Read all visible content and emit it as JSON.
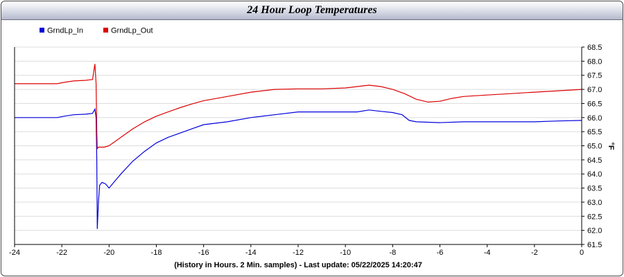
{
  "chart_data": {
    "type": "line",
    "title": "24 Hour Loop Temperatures",
    "xlabel": "(History in Hours. 2 Min. samples) - Last update: 05/22/2025 14:20:47",
    "ylabel": "°F",
    "xlim": [
      -24,
      0
    ],
    "ylim": [
      61.5,
      68.5
    ],
    "x_ticks": [
      -24,
      -22,
      -20,
      -18,
      -16,
      -14,
      -12,
      -10,
      -8,
      -6,
      -4,
      -2,
      0
    ],
    "y_ticks": [
      61.5,
      62.0,
      62.5,
      63.0,
      63.5,
      64.0,
      64.5,
      65.0,
      65.5,
      66.0,
      66.5,
      67.0,
      67.5,
      68.0,
      68.5
    ],
    "grid": "horizontal",
    "legend_position": "top-left",
    "series": [
      {
        "name": "GrndLp_In",
        "color": "#0000dd",
        "points": [
          [
            -24,
            66.0
          ],
          [
            -23,
            66.0
          ],
          [
            -22.2,
            66.0
          ],
          [
            -21.9,
            66.05
          ],
          [
            -21.5,
            66.1
          ],
          [
            -21.0,
            66.12
          ],
          [
            -20.7,
            66.15
          ],
          [
            -20.6,
            66.3
          ],
          [
            -20.55,
            66.0
          ],
          [
            -20.52,
            64.5
          ],
          [
            -20.5,
            62.05
          ],
          [
            -20.45,
            63.0
          ],
          [
            -20.4,
            63.6
          ],
          [
            -20.3,
            63.7
          ],
          [
            -20.15,
            63.65
          ],
          [
            -20.0,
            63.5
          ],
          [
            -19.8,
            63.7
          ],
          [
            -19.5,
            64.0
          ],
          [
            -19.0,
            64.45
          ],
          [
            -18.5,
            64.8
          ],
          [
            -18.0,
            65.1
          ],
          [
            -17.5,
            65.3
          ],
          [
            -17.0,
            65.45
          ],
          [
            -16.5,
            65.6
          ],
          [
            -16.0,
            65.75
          ],
          [
            -15.0,
            65.85
          ],
          [
            -14.0,
            66.0
          ],
          [
            -13.0,
            66.1
          ],
          [
            -12.0,
            66.2
          ],
          [
            -11.0,
            66.2
          ],
          [
            -10.0,
            66.2
          ],
          [
            -9.5,
            66.2
          ],
          [
            -9.0,
            66.27
          ],
          [
            -8.5,
            66.22
          ],
          [
            -8.0,
            66.18
          ],
          [
            -7.6,
            66.1
          ],
          [
            -7.3,
            65.9
          ],
          [
            -7.0,
            65.85
          ],
          [
            -6.0,
            65.82
          ],
          [
            -5.0,
            65.85
          ],
          [
            -4.0,
            65.85
          ],
          [
            -3.0,
            65.85
          ],
          [
            -2.0,
            65.85
          ],
          [
            -1.0,
            65.88
          ],
          [
            0,
            65.9
          ]
        ]
      },
      {
        "name": "GrndLp_Out",
        "color": "#dd0000",
        "points": [
          [
            -24,
            67.2
          ],
          [
            -23,
            67.2
          ],
          [
            -22.2,
            67.2
          ],
          [
            -21.9,
            67.25
          ],
          [
            -21.5,
            67.3
          ],
          [
            -21.0,
            67.32
          ],
          [
            -20.7,
            67.35
          ],
          [
            -20.6,
            67.9
          ],
          [
            -20.55,
            67.2
          ],
          [
            -20.52,
            65.5
          ],
          [
            -20.5,
            64.9
          ],
          [
            -20.45,
            64.95
          ],
          [
            -20.2,
            64.95
          ],
          [
            -20.0,
            65.0
          ],
          [
            -19.5,
            65.3
          ],
          [
            -19.0,
            65.6
          ],
          [
            -18.5,
            65.85
          ],
          [
            -18.0,
            66.05
          ],
          [
            -17.5,
            66.2
          ],
          [
            -17.0,
            66.35
          ],
          [
            -16.5,
            66.48
          ],
          [
            -16.0,
            66.6
          ],
          [
            -15.0,
            66.75
          ],
          [
            -14.0,
            66.9
          ],
          [
            -13.0,
            67.0
          ],
          [
            -12.0,
            67.02
          ],
          [
            -11.0,
            67.02
          ],
          [
            -10.0,
            67.05
          ],
          [
            -9.5,
            67.1
          ],
          [
            -9.0,
            67.15
          ],
          [
            -8.5,
            67.1
          ],
          [
            -8.0,
            67.0
          ],
          [
            -7.5,
            66.85
          ],
          [
            -7.0,
            66.65
          ],
          [
            -6.5,
            66.55
          ],
          [
            -6.0,
            66.58
          ],
          [
            -5.5,
            66.68
          ],
          [
            -5.0,
            66.75
          ],
          [
            -4.0,
            66.8
          ],
          [
            -3.0,
            66.85
          ],
          [
            -2.0,
            66.9
          ],
          [
            -1.0,
            66.95
          ],
          [
            0,
            67.0
          ]
        ]
      }
    ]
  }
}
